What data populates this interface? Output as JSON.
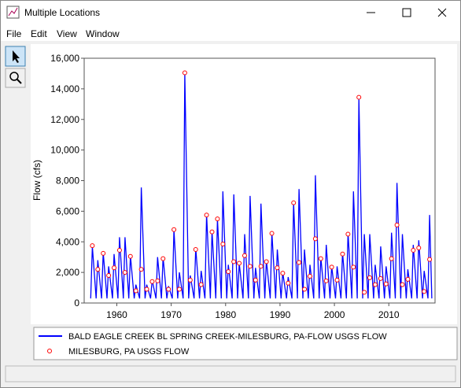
{
  "window": {
    "title": "Multiple Locations",
    "menu": [
      "File",
      "Edit",
      "View",
      "Window"
    ]
  },
  "chart_data": {
    "type": "line",
    "y_label": "Flow (cfs)",
    "xlim": [
      1954,
      2018.5
    ],
    "ylim": [
      0,
      16000
    ],
    "xticks": [
      1960,
      1970,
      1980,
      1990,
      2000,
      2010
    ],
    "yticks": [
      0,
      {
        "value": 2000,
        "label": "2,000"
      },
      {
        "value": 4000,
        "label": "4,000"
      },
      {
        "value": 6000,
        "label": "6,000"
      },
      {
        "value": 8000,
        "label": "8,000"
      },
      {
        "value": 10000,
        "label": "10,000"
      },
      {
        "value": 12000,
        "label": "12,000"
      },
      {
        "value": 14000,
        "label": "14,000"
      },
      {
        "value": 16000,
        "label": "16,000"
      }
    ],
    "legend": "bottom",
    "series": [
      {
        "name": "BALD EAGLE CREEK BL SPRING CREEK-MILESBURG, PA-FLOW USGS FLOW",
        "type": "line",
        "color": "#0000ff",
        "x": [
          1955.2,
          1955.5,
          1956.2,
          1956.5,
          1957.2,
          1957.5,
          1958.2,
          1958.5,
          1959.2,
          1959.5,
          1960.2,
          1960.5,
          1961.2,
          1961.5,
          1962.2,
          1962.5,
          1963.2,
          1963.5,
          1964.2,
          1964.5,
          1965.2,
          1965.5,
          1966.2,
          1966.5,
          1967.2,
          1967.5,
          1968.2,
          1968.5,
          1969.2,
          1969.5,
          1970.2,
          1970.5,
          1971.2,
          1971.5,
          1972.2,
          1972.5,
          1973.2,
          1973.5,
          1974.2,
          1974.5,
          1975.2,
          1975.5,
          1976.2,
          1976.5,
          1977.2,
          1977.5,
          1978.2,
          1978.5,
          1979.2,
          1979.5,
          1980.2,
          1980.5,
          1981.2,
          1981.5,
          1982.2,
          1982.5,
          1983.2,
          1983.5,
          1984.2,
          1984.5,
          1985.2,
          1985.5,
          1986.2,
          1986.5,
          1987.2,
          1987.5,
          1988.2,
          1988.5,
          1989.2,
          1989.5,
          1990.2,
          1990.5,
          1991.2,
          1991.5,
          1992.2,
          1992.5,
          1993.2,
          1993.5,
          1994.2,
          1994.5,
          1995.2,
          1995.5,
          1996.2,
          1996.5,
          1997.2,
          1997.5,
          1998.2,
          1998.5,
          1999.2,
          1999.5,
          2000.2,
          2000.5,
          2001.2,
          2001.5,
          2002.2,
          2002.5,
          2003.2,
          2003.5,
          2004.2,
          2004.5,
          2005.2,
          2005.5,
          2006.2,
          2006.5,
          2007.2,
          2007.5,
          2008.2,
          2008.5,
          2009.2,
          2009.5,
          2010.2,
          2010.5,
          2011.2,
          2011.5,
          2012.2,
          2012.5,
          2013.2,
          2013.5,
          2014.2,
          2014.5,
          2015.2,
          2015.5,
          2016.2,
          2016.5,
          2017.2,
          2017.5,
          2017.9
        ],
        "values": [
          300,
          3700,
          300,
          2800,
          300,
          3300,
          300,
          2400,
          300,
          3200,
          300,
          4300,
          300,
          4300,
          300,
          3100,
          300,
          1200,
          300,
          7550,
          300,
          1200,
          300,
          1500,
          300,
          3000,
          300,
          3000,
          300,
          1100,
          300,
          4800,
          300,
          2000,
          300,
          15050,
          300,
          1800,
          300,
          3600,
          300,
          2100,
          300,
          5800,
          300,
          4700,
          300,
          5500,
          300,
          7300,
          300,
          2500,
          300,
          7100,
          300,
          2600,
          300,
          4500,
          300,
          7000,
          300,
          2300,
          300,
          6500,
          300,
          2800,
          300,
          4600,
          300,
          3500,
          300,
          2000,
          300,
          1700,
          300,
          6550,
          300,
          7450,
          300,
          3500,
          300,
          2500,
          300,
          8350,
          300,
          3000,
          300,
          3800,
          300,
          2400,
          300,
          2400,
          300,
          3300,
          300,
          4600,
          300,
          7300,
          300,
          13450,
          300,
          4500,
          300,
          4500,
          300,
          2500,
          300,
          3700,
          300,
          2400,
          300,
          4600,
          300,
          7850,
          300,
          4500,
          300,
          2200,
          300,
          3800,
          300,
          4100,
          300,
          2100,
          300,
          5750,
          300
        ]
      },
      {
        "name": "MILESBURG, PA USGS FLOW",
        "type": "scatter",
        "color": "#ff0000",
        "x": [
          1955.5,
          1956.5,
          1957.5,
          1958.5,
          1959.5,
          1960.5,
          1961.5,
          1962.5,
          1963.5,
          1964.5,
          1965.5,
          1966.5,
          1967.5,
          1968.5,
          1969.5,
          1970.5,
          1971.5,
          1972.5,
          1973.5,
          1974.5,
          1975.5,
          1976.5,
          1977.5,
          1978.5,
          1979.5,
          1980.5,
          1981.5,
          1982.5,
          1983.5,
          1984.5,
          1985.5,
          1986.5,
          1987.5,
          1988.5,
          1989.5,
          1990.5,
          1991.5,
          1992.5,
          1993.5,
          1994.5,
          1995.5,
          1996.5,
          1997.5,
          1998.5,
          1999.5,
          2000.5,
          2001.5,
          2002.5,
          2003.5,
          2004.5,
          2005.5,
          2006.5,
          2007.5,
          2008.5,
          2009.5,
          2010.5,
          2011.5,
          2012.5,
          2013.5,
          2014.5,
          2015.5,
          2016.5,
          2017.5
        ],
        "values": [
          3750,
          2200,
          3250,
          1800,
          2300,
          3450,
          2000,
          3050,
          800,
          2200,
          900,
          1400,
          1450,
          2900,
          900,
          4800,
          900,
          15050,
          1500,
          3500,
          1200,
          5750,
          4650,
          5500,
          3850,
          2050,
          2700,
          2600,
          3100,
          2400,
          1500,
          2400,
          2700,
          4550,
          2300,
          1950,
          1300,
          6550,
          2650,
          900,
          1750,
          4200,
          2900,
          1450,
          2350,
          1500,
          3200,
          4500,
          2350,
          13450,
          700,
          1650,
          1200,
          1600,
          1250,
          2900,
          5100,
          1200,
          1550,
          3450,
          3600,
          750,
          2850
        ]
      }
    ]
  }
}
